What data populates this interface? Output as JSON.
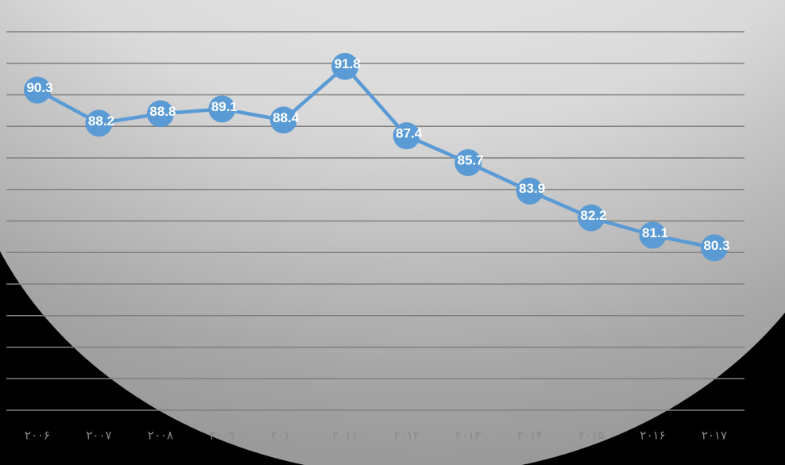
{
  "chart_data": {
    "type": "line",
    "title": "",
    "xlabel": "",
    "ylabel": "",
    "categories": [
      "۲۰۰۶",
      "۲۰۰۷",
      "۲۰۰۸",
      "۲۰۰۹",
      "۲۰۱۰",
      "۲۰۱۱",
      "۲۰۱۲",
      "۲۰۱۳",
      "۲۰۱۴",
      "۲۰۱۵",
      "۲۰۱۶",
      "۲۰۱۷"
    ],
    "series": [
      {
        "values": [
          90.3,
          88.2,
          88.8,
          89.1,
          88.4,
          91.8,
          87.4,
          85.7,
          83.9,
          82.2,
          81.1,
          80.3
        ]
      }
    ],
    "ylim": [
      70,
      94
    ],
    "grid": true,
    "legend": "none",
    "data_labels": true,
    "colors": {
      "line": "#5b9bd5",
      "marker": "#5b9bd5",
      "label_text": "#ffffff",
      "gridline": "#7f7f7f",
      "tick_text": "#8a8a8a",
      "background_light": "#f2f2f2",
      "background_mid": "#bfbfbf",
      "background_dark": "#000000"
    }
  }
}
